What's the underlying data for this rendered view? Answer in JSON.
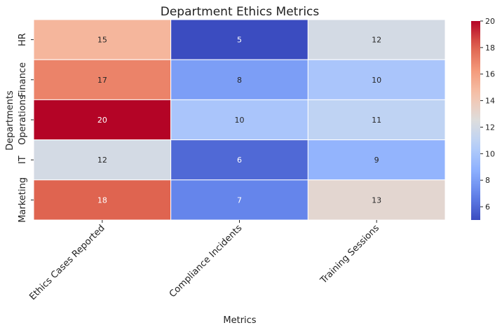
{
  "chart_data": {
    "type": "heatmap",
    "title": "Department Ethics Metrics",
    "xlabel": "Metrics",
    "ylabel": "Departments",
    "x_categories": [
      "Ethics Cases Reported",
      "Compliance Incidents",
      "Training Sessions"
    ],
    "y_categories": [
      "HR",
      "Finance",
      "Operations",
      "IT",
      "Marketing"
    ],
    "values": [
      [
        15,
        5,
        12
      ],
      [
        17,
        8,
        10
      ],
      [
        20,
        10,
        11
      ],
      [
        12,
        6,
        9
      ],
      [
        18,
        7,
        13
      ]
    ],
    "colormap": "coolwarm",
    "vmin": 5,
    "vmax": 20,
    "colorbar_ticks": [
      6,
      8,
      10,
      12,
      14,
      16,
      18,
      20
    ]
  }
}
